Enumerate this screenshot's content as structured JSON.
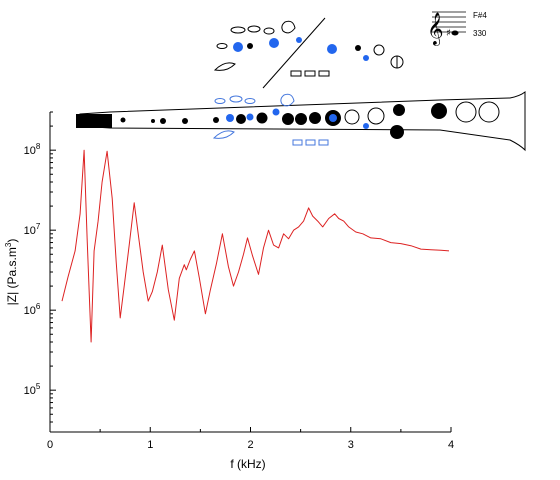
{
  "chart_data": {
    "type": "line",
    "xlabel": "f (kHz)",
    "ylabel_main": "|Z| (Pa.s.m",
    "ylabel_sup": "3",
    "ylabel_tail": ")",
    "xlim": [
      0,
      4
    ],
    "ylim": [
      30000,
      300000000
    ],
    "y_scale": "log",
    "x_ticks": [
      0,
      1,
      2,
      3,
      4
    ],
    "x_tick_labels": [
      "0",
      "1",
      "2",
      "3",
      "4"
    ],
    "y_ticks": [
      100000,
      1000000,
      10000000,
      100000000
    ],
    "y_tick_mantissa": [
      "10",
      "10",
      "10",
      "10"
    ],
    "y_tick_exponents": [
      "5",
      "6",
      "7",
      "8"
    ],
    "grid": false,
    "series": [
      {
        "color": "#dd2222",
        "x": [
          0.12,
          0.18,
          0.25,
          0.3,
          0.34,
          0.37,
          0.41,
          0.44,
          0.48,
          0.52,
          0.57,
          0.62,
          0.66,
          0.7,
          0.74,
          0.79,
          0.84,
          0.88,
          0.93,
          0.98,
          1.02,
          1.07,
          1.12,
          1.18,
          1.24,
          1.29,
          1.34,
          1.36,
          1.4,
          1.44,
          1.49,
          1.55,
          1.6,
          1.66,
          1.72,
          1.78,
          1.83,
          1.88,
          1.93,
          1.97,
          2.02,
          2.08,
          2.13,
          2.18,
          2.23,
          2.28,
          2.33,
          2.38,
          2.43,
          2.48,
          2.53,
          2.58,
          2.62,
          2.67,
          2.72,
          2.78,
          2.84,
          2.88,
          2.93,
          2.98,
          3.05,
          3.12,
          3.2,
          3.3,
          3.4,
          3.5,
          3.6,
          3.7,
          3.8,
          3.9,
          3.98
        ],
        "y": [
          1300000,
          2600000,
          5500000,
          16000000,
          100000000,
          8000000,
          400000,
          5500000,
          13000000,
          40000000,
          97000000,
          25000000,
          4000000,
          800000,
          2000000,
          6500000,
          22000000,
          9000000,
          3000000,
          1300000,
          1700000,
          3000000,
          6500000,
          1800000,
          750000,
          2500000,
          3700000,
          3200000,
          4300000,
          5500000,
          2500000,
          900000,
          1800000,
          3800000,
          9000000,
          3500000,
          2000000,
          3000000,
          5000000,
          8000000,
          4800000,
          2800000,
          6000000,
          10000000,
          6500000,
          6000000,
          9000000,
          7800000,
          10000000,
          11000000,
          13000000,
          19000000,
          15000000,
          13000000,
          11000000,
          14000000,
          16000000,
          14000000,
          13000000,
          11000000,
          9500000,
          9000000,
          8000000,
          7800000,
          7000000,
          6800000,
          6400000,
          5800000,
          5700000,
          5600000,
          5500000
        ]
      }
    ]
  },
  "fingering": {
    "note": "F#4",
    "frequency": "330",
    "bell_label": "bell-diagram"
  }
}
